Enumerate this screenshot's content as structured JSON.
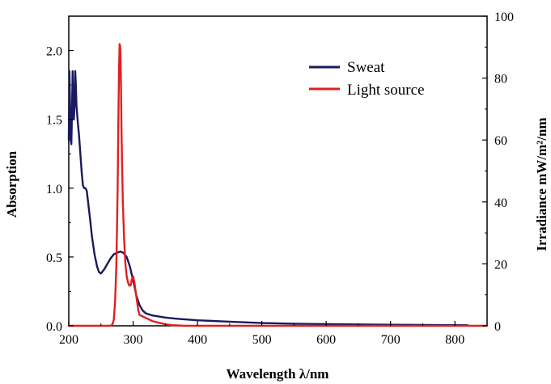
{
  "chart_data": {
    "type": "line",
    "title": "",
    "xlabel": "Wavelength λ/nm",
    "ylabel_left": "Absorption",
    "ylabel_right": "Irradiance mW/m²/nm",
    "xlim": [
      200,
      850
    ],
    "ylim_left": [
      0,
      2.25
    ],
    "ylim_right": [
      0,
      100
    ],
    "x_ticks": [
      "200",
      "300",
      "400",
      "500",
      "600",
      "700",
      "800"
    ],
    "y_left_ticks": [
      "0.0",
      "0.5",
      "1.0",
      "1.5",
      "2.0"
    ],
    "y_right_ticks": [
      "0",
      "20",
      "40",
      "60",
      "80",
      "100"
    ],
    "grid": false,
    "legend_position": "top-right",
    "series": [
      {
        "name": "Sweat",
        "axis": "left",
        "color": "#1a1a5e",
        "points": [
          [
            200,
            1.35
          ],
          [
            201,
            1.85
          ],
          [
            202,
            1.6
          ],
          [
            203,
            1.35
          ],
          [
            204,
            1.32
          ],
          [
            205,
            1.55
          ],
          [
            206,
            1.85
          ],
          [
            207,
            1.65
          ],
          [
            208,
            1.5
          ],
          [
            209,
            1.6
          ],
          [
            210,
            1.85
          ],
          [
            211,
            1.75
          ],
          [
            212,
            1.6
          ],
          [
            214,
            1.48
          ],
          [
            216,
            1.38
          ],
          [
            218,
            1.25
          ],
          [
            220,
            1.12
          ],
          [
            222,
            1.02
          ],
          [
            224,
            1.0
          ],
          [
            226,
            1.0
          ],
          [
            228,
            0.98
          ],
          [
            230,
            0.9
          ],
          [
            233,
            0.78
          ],
          [
            236,
            0.65
          ],
          [
            240,
            0.52
          ],
          [
            244,
            0.43
          ],
          [
            247,
            0.39
          ],
          [
            250,
            0.38
          ],
          [
            255,
            0.41
          ],
          [
            260,
            0.45
          ],
          [
            265,
            0.49
          ],
          [
            270,
            0.52
          ],
          [
            275,
            0.53
          ],
          [
            280,
            0.54
          ],
          [
            285,
            0.53
          ],
          [
            290,
            0.5
          ],
          [
            295,
            0.43
          ],
          [
            300,
            0.33
          ],
          [
            305,
            0.22
          ],
          [
            310,
            0.15
          ],
          [
            315,
            0.11
          ],
          [
            320,
            0.09
          ],
          [
            330,
            0.075
          ],
          [
            350,
            0.06
          ],
          [
            370,
            0.05
          ],
          [
            400,
            0.04
          ],
          [
            450,
            0.03
          ],
          [
            500,
            0.02
          ],
          [
            550,
            0.015
          ],
          [
            600,
            0.012
          ],
          [
            650,
            0.01
          ],
          [
            700,
            0.008
          ],
          [
            750,
            0.006
          ],
          [
            800,
            0.005
          ],
          [
            820,
            0.004
          ]
        ]
      },
      {
        "name": "Light source",
        "axis": "right",
        "color": "#e02020",
        "points": [
          [
            200,
            0
          ],
          [
            265,
            0
          ],
          [
            268,
            0.5
          ],
          [
            270,
            2
          ],
          [
            272,
            8
          ],
          [
            274,
            20
          ],
          [
            276,
            45
          ],
          [
            277,
            65
          ],
          [
            278,
            82
          ],
          [
            279,
            91
          ],
          [
            280,
            90
          ],
          [
            281,
            80
          ],
          [
            282,
            62
          ],
          [
            284,
            40
          ],
          [
            286,
            28
          ],
          [
            288,
            20
          ],
          [
            290,
            16
          ],
          [
            292,
            14
          ],
          [
            294,
            13
          ],
          [
            296,
            13
          ],
          [
            298,
            15
          ],
          [
            300,
            16
          ],
          [
            302,
            14
          ],
          [
            304,
            11
          ],
          [
            306,
            8
          ],
          [
            308,
            5
          ],
          [
            310,
            3.5
          ],
          [
            315,
            3
          ],
          [
            320,
            2.5
          ],
          [
            325,
            2
          ],
          [
            330,
            1.5
          ],
          [
            340,
            1
          ],
          [
            350,
            0.5
          ],
          [
            360,
            0.2
          ],
          [
            380,
            0
          ],
          [
            850,
            0
          ]
        ]
      }
    ]
  },
  "legend": [
    {
      "label": "Sweat",
      "color": "#1a1a5e"
    },
    {
      "label": "Light source",
      "color": "#e02020"
    }
  ]
}
